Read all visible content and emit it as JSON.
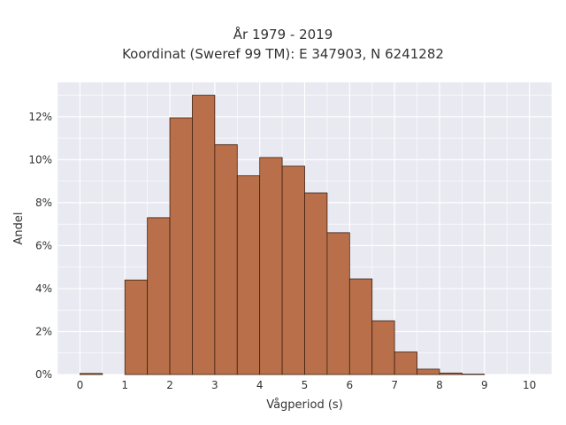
{
  "chart_data": {
    "type": "bar",
    "title": "År 1979 - 2019",
    "subtitle": "Koordinat (Sweref 99 TM): E 347903, N 6241282",
    "xlabel": "Vågperiod (s)",
    "ylabel": "Andel",
    "bin_width": 0.5,
    "bin_starts": [
      0,
      0.5,
      1,
      1.5,
      2,
      2.5,
      3,
      3.5,
      4,
      4.5,
      5,
      5.5,
      6,
      6.5,
      7,
      7.5,
      8,
      8.5,
      9,
      9.5
    ],
    "values": [
      0.05,
      0,
      4.4,
      7.3,
      11.95,
      13.0,
      10.7,
      9.25,
      10.1,
      9.7,
      8.45,
      6.6,
      4.45,
      2.5,
      1.05,
      0.25,
      0.07,
      0.02,
      0,
      0
    ],
    "xlim": [
      -0.5,
      10.5
    ],
    "ylim": [
      0,
      13.6
    ],
    "x_ticks": [
      "0",
      "1",
      "2",
      "3",
      "4",
      "5",
      "6",
      "7",
      "8",
      "9",
      "10"
    ],
    "y_ticks": [
      "0%",
      "2%",
      "4%",
      "6%",
      "8%",
      "10%",
      "12%"
    ],
    "grid": true,
    "bar_color": "#b9704a",
    "bar_edge_color": "#3d2012",
    "plot_bg": "#e9e9f1",
    "grid_color": "#ffffff"
  }
}
